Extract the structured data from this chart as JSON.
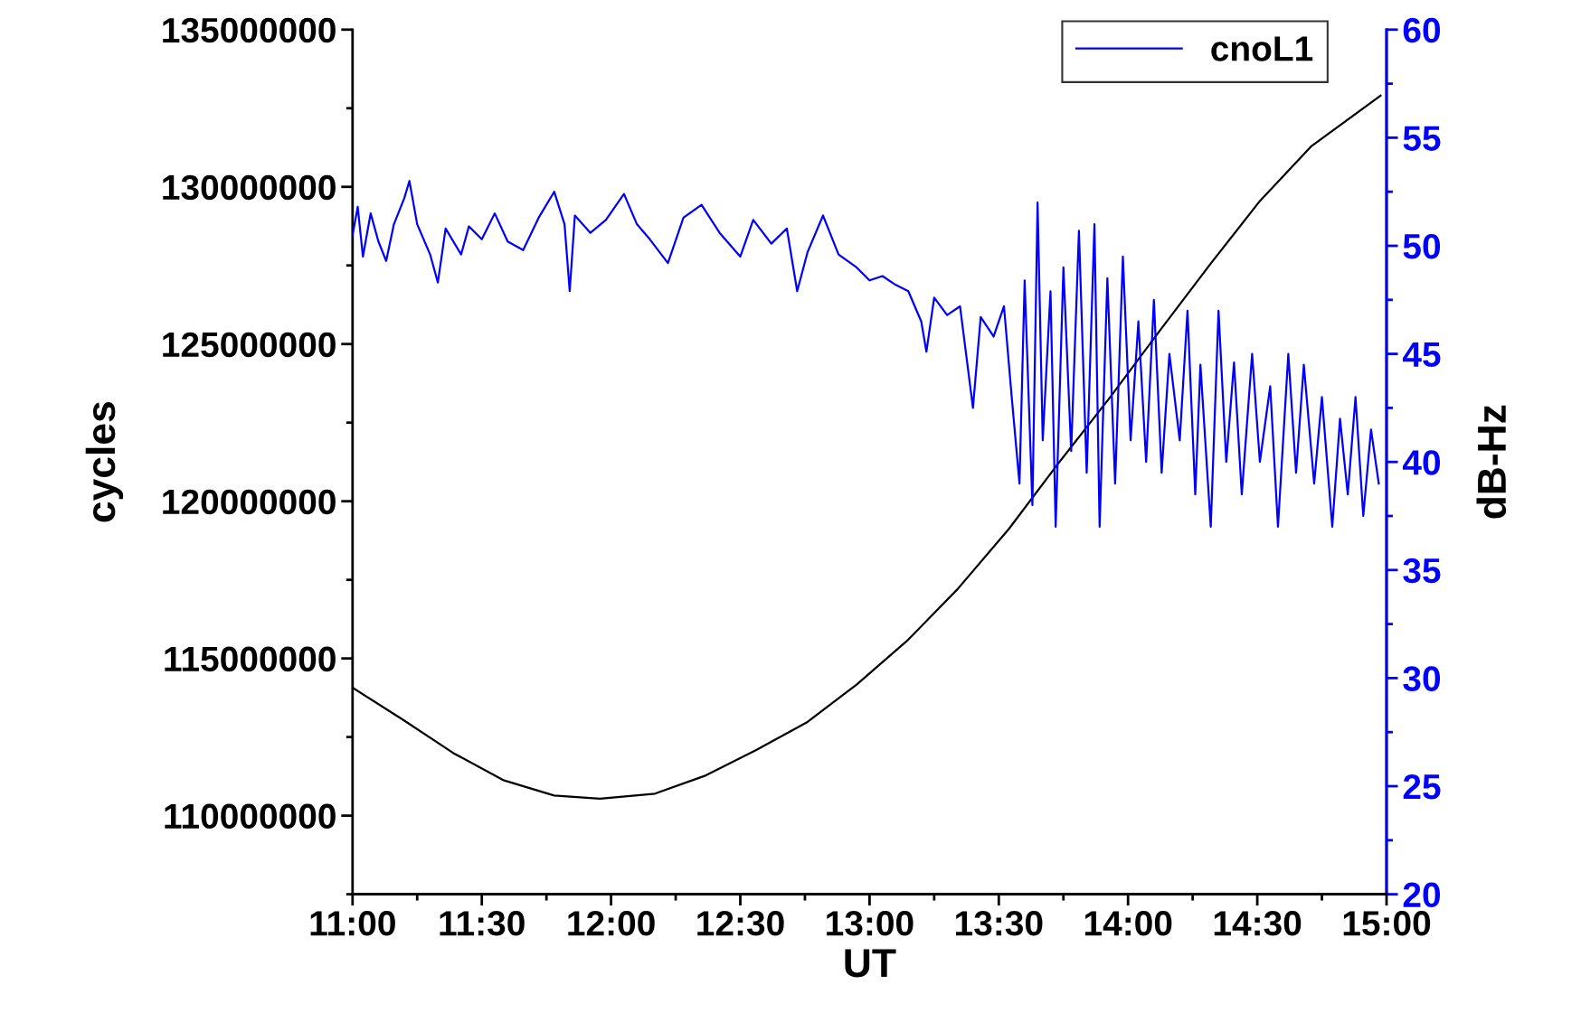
{
  "chart_data": {
    "type": "line",
    "xlabel": "UT",
    "ylabel": "cycles",
    "y2label": "dB-Hz",
    "legend": "top right",
    "xlim": [
      11,
      15
    ],
    "xticks": [
      {
        "value": 11,
        "label": "11:00"
      },
      {
        "value": 11.5,
        "label": "11:30"
      },
      {
        "value": 12,
        "label": "12:00"
      },
      {
        "value": 12.5,
        "label": "12:30"
      },
      {
        "value": 13,
        "label": "13:00"
      },
      {
        "value": 13.5,
        "label": "13:30"
      },
      {
        "value": 14,
        "label": "14:00"
      },
      {
        "value": 14.5,
        "label": "14:30"
      },
      {
        "value": 15,
        "label": "15:00"
      }
    ],
    "ylim": [
      107500000,
      135000000
    ],
    "yticks": [
      110000000,
      115000000,
      120000000,
      125000000,
      130000000,
      135000000
    ],
    "y2lim": [
      20,
      60
    ],
    "y2ticks": [
      20,
      25,
      30,
      35,
      40,
      45,
      50,
      55,
      60
    ],
    "series": [
      {
        "color": "#000000",
        "x": [
          11.0,
          11.195,
          11.39,
          11.586,
          11.78,
          11.957,
          12.17,
          12.367,
          12.56,
          12.76,
          12.95,
          13.15,
          13.34,
          13.54,
          13.73,
          13.93,
          14.125,
          14.32,
          14.51,
          14.71,
          14.977
        ],
        "values": [
          114070000,
          113050000,
          111990000,
          111120000,
          110640000,
          110540000,
          110700000,
          111280000,
          112080000,
          112980000,
          114170000,
          115600000,
          117200000,
          119130000,
          121200000,
          123300000,
          125450000,
          127560000,
          129550000,
          131300000,
          132900000
        ]
      },
      {
        "name": "cnoL1",
        "color": "#0000ff",
        "axis": "y2",
        "x": [
          11.0,
          11.02,
          11.04,
          11.07,
          11.1,
          11.13,
          11.16,
          11.2,
          11.22,
          11.25,
          11.3,
          11.33,
          11.36,
          11.42,
          11.45,
          11.5,
          11.55,
          11.6,
          11.66,
          11.72,
          11.78,
          11.82,
          11.84,
          11.86,
          11.92,
          11.98,
          12.05,
          12.1,
          12.15,
          12.22,
          12.28,
          12.35,
          12.42,
          12.5,
          12.55,
          12.62,
          12.68,
          12.72,
          12.76,
          12.82,
          12.88,
          12.95,
          13.0,
          13.05,
          13.1,
          13.15,
          13.2,
          13.22,
          13.25,
          13.3,
          13.35,
          13.4,
          13.43,
          13.48,
          13.52,
          13.55,
          13.58,
          13.6,
          13.63,
          13.65,
          13.67,
          13.7,
          13.72,
          13.75,
          13.78,
          13.81,
          13.84,
          13.87,
          13.89,
          13.92,
          13.95,
          13.98,
          14.01,
          14.04,
          14.07,
          14.1,
          14.13,
          14.16,
          14.2,
          14.23,
          14.26,
          14.28,
          14.32,
          14.35,
          14.38,
          14.41,
          14.44,
          14.48,
          14.51,
          14.55,
          14.58,
          14.62,
          14.65,
          14.68,
          14.72,
          14.75,
          14.79,
          14.82,
          14.85,
          14.88,
          14.91,
          14.94,
          14.97
        ],
        "values": [
          50.5,
          51.8,
          49.5,
          51.5,
          50.2,
          49.3,
          51.0,
          52.2,
          53.0,
          51.0,
          49.6,
          48.3,
          50.8,
          49.6,
          50.9,
          50.3,
          51.5,
          50.2,
          49.8,
          51.3,
          52.5,
          51.0,
          47.9,
          51.4,
          50.6,
          51.2,
          52.4,
          51.0,
          50.3,
          49.2,
          51.3,
          51.9,
          50.6,
          49.5,
          51.2,
          50.1,
          50.8,
          47.9,
          49.7,
          51.4,
          49.6,
          49.0,
          48.4,
          48.6,
          48.2,
          47.9,
          46.5,
          45.1,
          47.6,
          46.8,
          47.2,
          42.5,
          46.7,
          45.8,
          47.2,
          43.0,
          39.0,
          48.4,
          38.0,
          52.0,
          41.0,
          47.9,
          37.0,
          49.0,
          40.5,
          50.7,
          39.5,
          51.0,
          37.0,
          48.5,
          39.0,
          49.5,
          41.0,
          46.5,
          40.0,
          47.5,
          39.5,
          45.0,
          41.0,
          47.0,
          38.5,
          44.5,
          37.0,
          47.0,
          40.0,
          44.6,
          38.5,
          45.0,
          40.0,
          43.5,
          37.0,
          45.0,
          39.5,
          44.5,
          39.0,
          43.0,
          37.0,
          42.0,
          38.5,
          43.0,
          37.5,
          41.5,
          39.0
        ]
      }
    ]
  }
}
